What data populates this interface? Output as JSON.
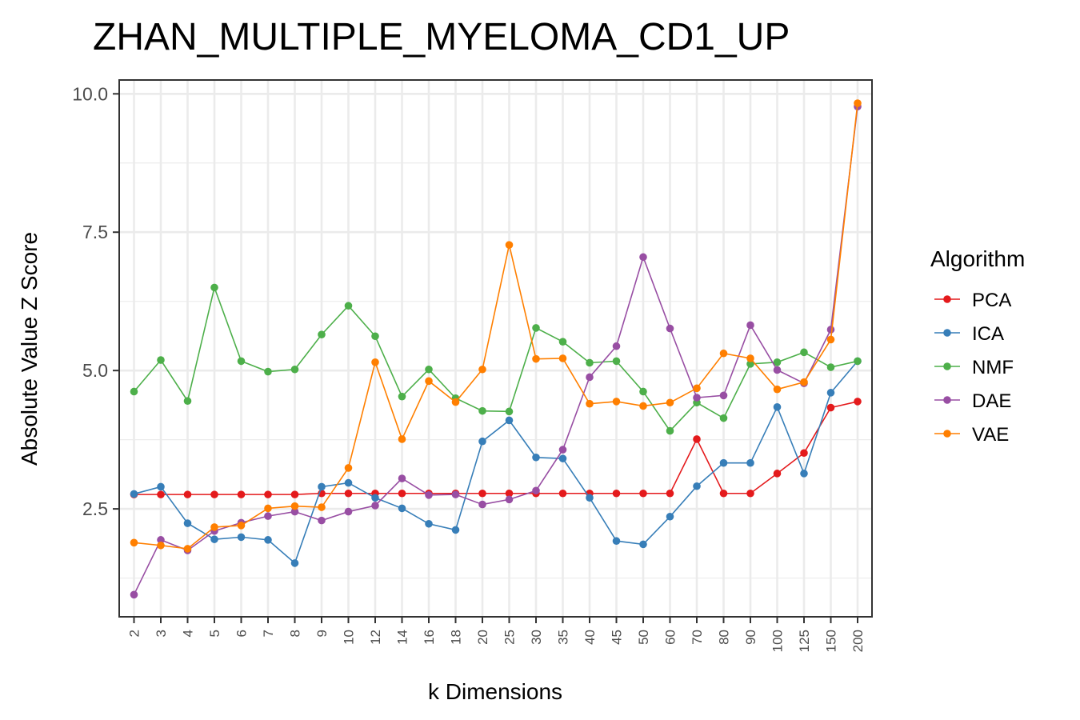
{
  "chart_data": {
    "type": "line",
    "title": "ZHAN_MULTIPLE_MYELOMA_CD1_UP",
    "xlabel": "k Dimensions",
    "ylabel": "Absolute Value Z Score",
    "categories": [
      "2",
      "3",
      "4",
      "5",
      "6",
      "7",
      "8",
      "9",
      "10",
      "12",
      "14",
      "16",
      "18",
      "20",
      "25",
      "30",
      "35",
      "40",
      "45",
      "50",
      "60",
      "70",
      "80",
      "90",
      "100",
      "125",
      "150",
      "200"
    ],
    "y_ticks": [
      "2.5",
      "5.0",
      "7.5",
      "10.0"
    ],
    "y_tick_values": [
      2.5,
      5.0,
      7.5,
      10.0
    ],
    "ylim": [
      0.55,
      10.25
    ],
    "grid": true,
    "legend": {
      "title": "Algorithm",
      "placement": "right"
    },
    "series": [
      {
        "name": "PCA",
        "color": "#e41a1c",
        "values": [
          2.76,
          2.76,
          2.76,
          2.76,
          2.76,
          2.76,
          2.76,
          2.78,
          2.78,
          2.78,
          2.78,
          2.78,
          2.78,
          2.78,
          2.78,
          2.78,
          2.78,
          2.78,
          2.78,
          2.78,
          2.78,
          3.76,
          2.78,
          2.78,
          3.14,
          3.51,
          4.33,
          4.44
        ]
      },
      {
        "name": "ICA",
        "color": "#377eb8",
        "values": [
          2.77,
          2.9,
          2.24,
          1.95,
          1.99,
          1.94,
          1.52,
          2.9,
          2.97,
          2.7,
          2.51,
          2.23,
          2.12,
          3.72,
          4.1,
          3.43,
          3.41,
          2.7,
          1.92,
          1.86,
          2.36,
          2.91,
          3.33,
          3.33,
          4.34,
          3.14,
          4.6,
          5.17
        ]
      },
      {
        "name": "NMF",
        "color": "#4daf4a",
        "values": [
          4.62,
          5.19,
          4.45,
          6.5,
          5.17,
          4.98,
          5.02,
          5.65,
          6.17,
          5.62,
          4.53,
          5.02,
          4.5,
          4.27,
          4.26,
          5.77,
          5.52,
          5.14,
          5.17,
          4.62,
          3.91,
          4.42,
          4.14,
          5.12,
          5.15,
          5.33,
          5.06,
          5.17
        ]
      },
      {
        "name": "DAE",
        "color": "#984ea3",
        "values": [
          0.95,
          1.94,
          1.75,
          2.1,
          2.25,
          2.37,
          2.45,
          2.29,
          2.45,
          2.56,
          3.05,
          2.75,
          2.76,
          2.58,
          2.67,
          2.83,
          3.57,
          4.88,
          5.44,
          7.05,
          5.76,
          4.51,
          4.55,
          5.82,
          5.01,
          4.77,
          5.74,
          9.77
        ]
      },
      {
        "name": "VAE",
        "color": "#ff7f00",
        "values": [
          1.89,
          1.84,
          1.78,
          2.17,
          2.2,
          2.51,
          2.55,
          2.53,
          3.24,
          5.15,
          3.76,
          4.81,
          4.43,
          5.02,
          7.27,
          5.21,
          5.22,
          4.4,
          4.44,
          4.36,
          4.42,
          4.68,
          5.31,
          5.22,
          4.66,
          4.79,
          5.56,
          9.83
        ]
      }
    ]
  }
}
